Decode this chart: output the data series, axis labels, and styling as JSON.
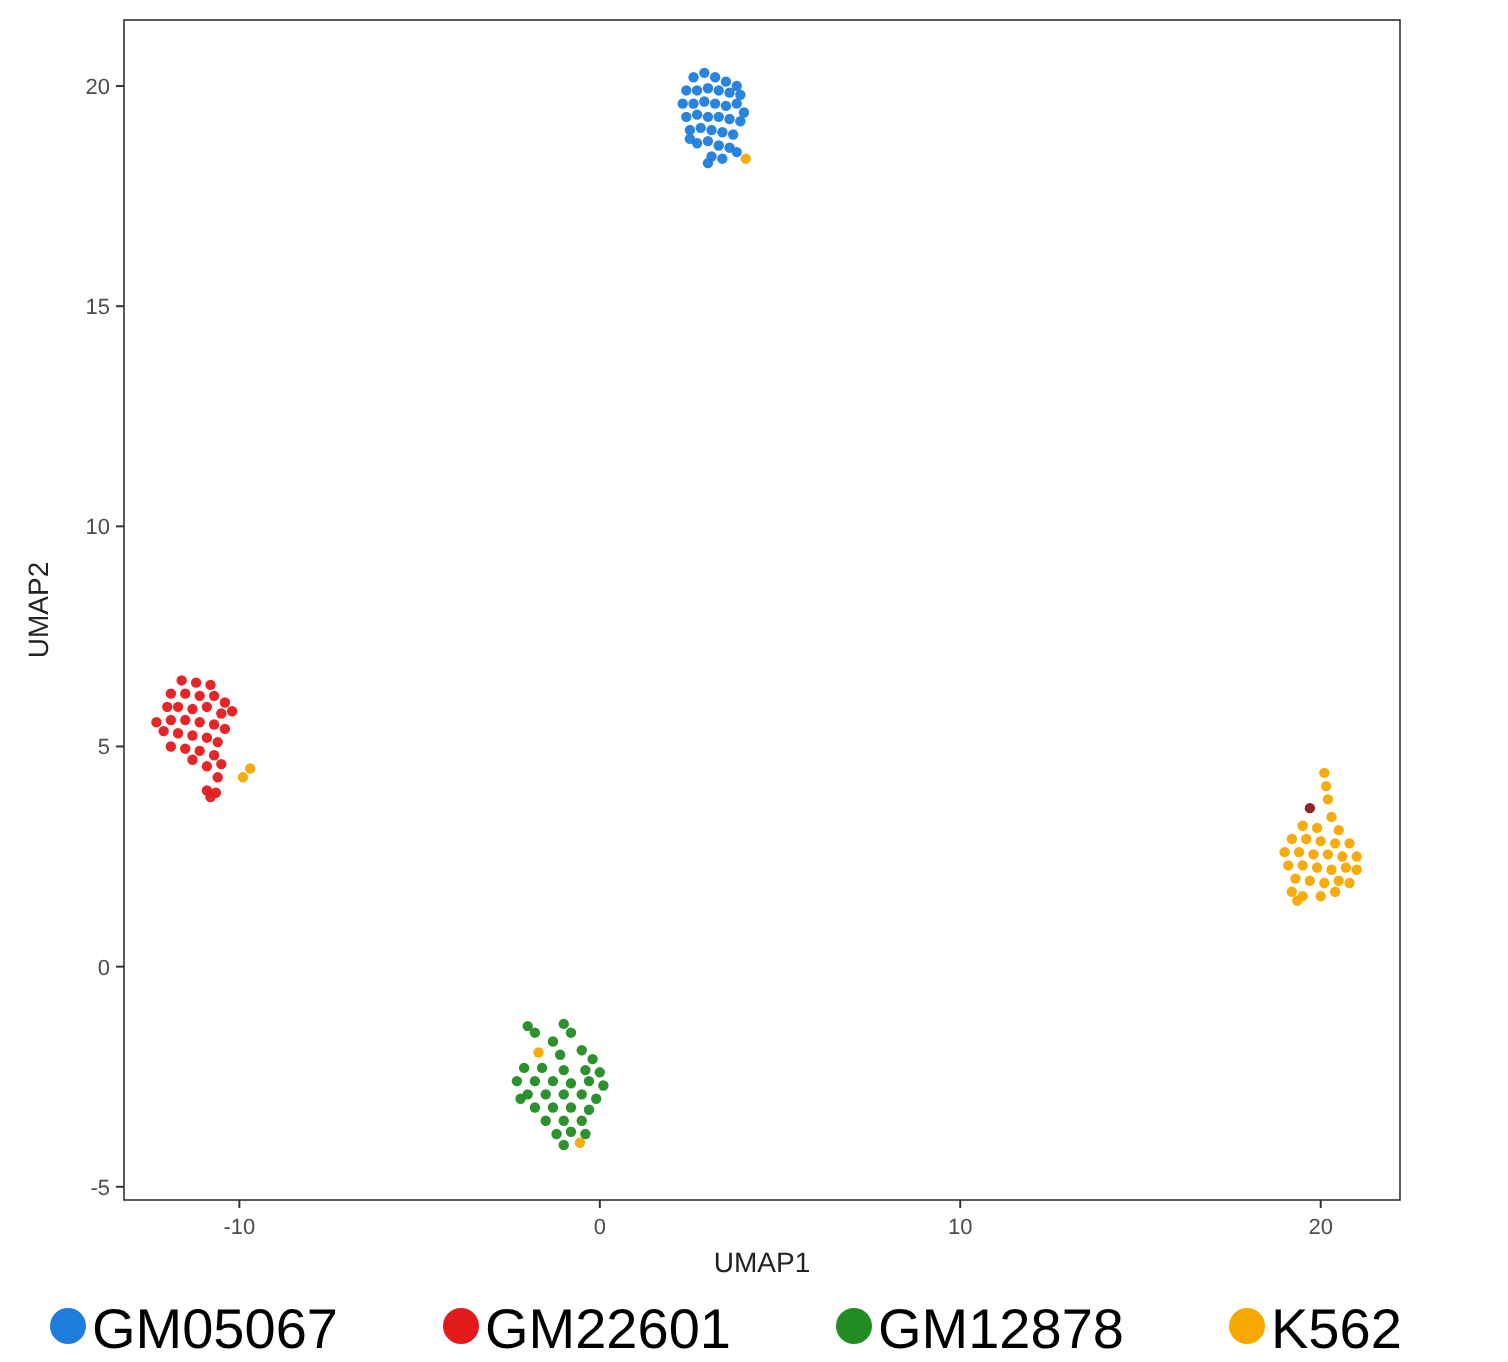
{
  "chart_data": {
    "type": "scatter",
    "xlabel": "UMAP1",
    "ylabel": "UMAP2",
    "xlim": [
      -13.2,
      22.2
    ],
    "ylim": [
      -5.3,
      21.5
    ],
    "xticks": [
      -10,
      0,
      10,
      20
    ],
    "yticks": [
      -5,
      0,
      5,
      10,
      15,
      20
    ],
    "grid": false,
    "legend": "bottom",
    "marker": "circle",
    "series": [
      {
        "name": "GM05067",
        "color": "#1e7ddc",
        "x": [
          2.6,
          2.9,
          3.2,
          3.5,
          3.8,
          2.4,
          2.7,
          3.0,
          3.3,
          3.6,
          3.9,
          2.3,
          2.6,
          2.9,
          3.2,
          3.5,
          3.8,
          4.0,
          2.4,
          2.7,
          3.0,
          3.3,
          3.6,
          3.9,
          2.5,
          2.8,
          3.1,
          3.4,
          3.7,
          2.7,
          3.0,
          3.3,
          3.6,
          3.1,
          3.4,
          3.0,
          3.8,
          2.5
        ],
        "values": [
          20.2,
          20.3,
          20.2,
          20.1,
          20.0,
          19.9,
          19.9,
          19.95,
          19.9,
          19.85,
          19.8,
          19.6,
          19.6,
          19.65,
          19.6,
          19.55,
          19.6,
          19.4,
          19.3,
          19.35,
          19.3,
          19.3,
          19.25,
          19.2,
          19.0,
          19.05,
          19.0,
          18.95,
          18.9,
          18.7,
          18.75,
          18.65,
          18.6,
          18.4,
          18.35,
          18.25,
          18.5,
          18.8
        ]
      },
      {
        "name": "GM22601",
        "color": "#e31a1c",
        "x": [
          -11.6,
          -11.2,
          -10.8,
          -11.9,
          -11.5,
          -11.1,
          -10.7,
          -10.4,
          -12.0,
          -11.7,
          -11.3,
          -10.9,
          -10.5,
          -11.9,
          -11.5,
          -11.1,
          -10.7,
          -10.4,
          -12.1,
          -11.7,
          -11.3,
          -10.9,
          -10.6,
          -11.9,
          -11.5,
          -11.1,
          -10.7,
          -11.3,
          -10.9,
          -10.5,
          -10.6,
          -10.9,
          -10.8,
          -10.65,
          -12.3,
          -10.2
        ],
        "values": [
          6.5,
          6.45,
          6.4,
          6.2,
          6.2,
          6.15,
          6.15,
          6.0,
          5.9,
          5.9,
          5.85,
          5.9,
          5.75,
          5.6,
          5.6,
          5.55,
          5.5,
          5.4,
          5.35,
          5.3,
          5.25,
          5.2,
          5.1,
          5.0,
          4.95,
          4.9,
          4.8,
          4.7,
          4.55,
          4.6,
          4.3,
          4.0,
          3.85,
          3.95,
          5.55,
          5.8
        ]
      },
      {
        "name": "GM12878",
        "color": "#228b22",
        "x": [
          -2.0,
          -1.8,
          -1.0,
          -0.8,
          -1.3,
          -0.5,
          -1.1,
          -0.2,
          -2.1,
          -1.6,
          -1.0,
          -0.4,
          0.0,
          -2.3,
          -1.8,
          -1.3,
          -0.8,
          -0.3,
          0.1,
          -2.0,
          -1.5,
          -1.0,
          -0.5,
          -0.1,
          -1.8,
          -1.3,
          -0.8,
          -0.3,
          -1.5,
          -1.0,
          -0.5,
          -1.2,
          -0.8,
          -1.0,
          -0.4,
          -2.2
        ],
        "values": [
          -1.35,
          -1.5,
          -1.3,
          -1.5,
          -1.7,
          -1.9,
          -2.0,
          -2.1,
          -2.3,
          -2.3,
          -2.35,
          -2.35,
          -2.4,
          -2.6,
          -2.6,
          -2.6,
          -2.65,
          -2.6,
          -2.7,
          -2.9,
          -2.9,
          -2.9,
          -2.9,
          -3.0,
          -3.2,
          -3.2,
          -3.2,
          -3.25,
          -3.5,
          -3.5,
          -3.5,
          -3.8,
          -3.75,
          -4.05,
          -3.8,
          -3.0
        ]
      },
      {
        "name": "K562",
        "color": "#f5a800",
        "x": [
          20.1,
          20.15,
          20.2,
          20.3,
          19.5,
          19.9,
          20.5,
          19.2,
          19.6,
          20.0,
          20.4,
          20.8,
          19.0,
          19.4,
          19.8,
          20.2,
          20.6,
          21.0,
          19.1,
          19.5,
          19.9,
          20.3,
          20.7,
          21.0,
          19.3,
          19.7,
          20.1,
          20.5,
          20.8,
          19.2,
          19.5,
          20.0,
          20.4,
          19.35,
          4.05,
          -9.7,
          -9.9,
          -1.7,
          -0.55
        ],
        "values": [
          4.4,
          4.1,
          3.8,
          3.4,
          3.2,
          3.15,
          3.1,
          2.9,
          2.9,
          2.85,
          2.8,
          2.8,
          2.6,
          2.6,
          2.55,
          2.55,
          2.5,
          2.5,
          2.3,
          2.3,
          2.25,
          2.2,
          2.25,
          2.2,
          2.0,
          1.95,
          1.9,
          1.95,
          1.9,
          1.7,
          1.6,
          1.6,
          1.7,
          1.5,
          18.35,
          4.5,
          4.3,
          -1.95,
          -4.0
        ]
      },
      {
        "color": "#8b1a1a",
        "x": [
          19.7
        ],
        "values": [
          3.6
        ]
      }
    ]
  }
}
